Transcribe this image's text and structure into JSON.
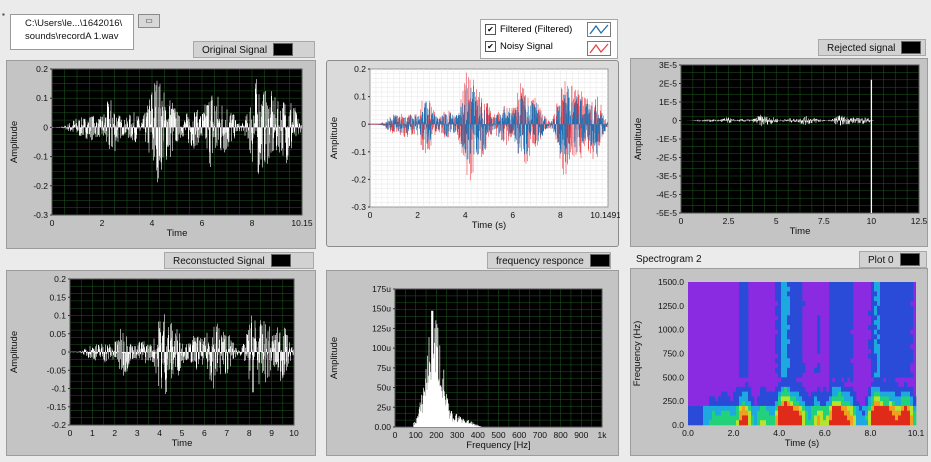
{
  "file_path": {
    "line1": "C:\\Users\\le...\\1642016\\",
    "line2": "sounds\\recordA 1.wav"
  },
  "browse_button": {
    "label": "▭"
  },
  "legend": {
    "items": [
      {
        "label": "Filtered (Filtered)",
        "checked": "✔",
        "color": "#1f6fb2"
      },
      {
        "label": "Noisy Signal",
        "checked": "✔",
        "color": "#e8434c"
      }
    ]
  },
  "original": {
    "title": "Original Signal",
    "xlabel": "Time",
    "ylabel": "Amplitude",
    "yticks": [
      "0.2",
      "0.1",
      "0",
      "-0.1",
      "-0.2",
      "-0.3"
    ],
    "xticks": [
      "0",
      "2",
      "4",
      "6",
      "8",
      "10.15"
    ]
  },
  "filtered": {
    "xlabel": "Time (s)",
    "ylabel": "Amplitude",
    "yticks": [
      "0.2",
      "0.1",
      "0",
      "-0.1",
      "-0.2",
      "-0.3"
    ],
    "xticks": [
      "0",
      "2",
      "4",
      "6",
      "8",
      "10.14912"
    ]
  },
  "rejected": {
    "title": "Rejected signal",
    "xlabel": "Time",
    "ylabel": "Amplitude",
    "yticks": [
      "3E-5",
      "2E-5",
      "1E-5",
      "0",
      "-1E-5",
      "-2E-5",
      "-3E-5",
      "-4E-5",
      "-5E-5"
    ],
    "xticks": [
      "0",
      "2.5",
      "5",
      "7.5",
      "10",
      "12.5"
    ]
  },
  "reconstructed": {
    "title": "Reconstucted Signal",
    "xlabel": "Time",
    "ylabel": "Amplitude",
    "yticks": [
      "0.2",
      "0.15",
      "0.1",
      "0.05",
      "0",
      "-0.05",
      "-0.1",
      "-0.15",
      "-0.2"
    ],
    "xticks": [
      "0",
      "1",
      "2",
      "3",
      "4",
      "5",
      "6",
      "7",
      "8",
      "9",
      "10"
    ]
  },
  "frequency": {
    "title": "frequency responce",
    "xlabel": "Frequency [Hz]",
    "ylabel": "Amplitude",
    "yticks": [
      "175u",
      "150u",
      "125u",
      "100u",
      "75u",
      "50u",
      "25u",
      "0.00"
    ],
    "xticks": [
      "0",
      "100",
      "200",
      "300",
      "400",
      "500",
      "600",
      "700",
      "800",
      "900",
      "1k"
    ]
  },
  "spectrogram": {
    "title": "Spectrogram 2",
    "plot_label": "Plot 0",
    "xlabel": "Time (s)",
    "ylabel": "Frequency (Hz)",
    "yticks": [
      "1500.0",
      "1250.0",
      "1000.0",
      "750.0",
      "500.0",
      "250.0",
      "0.0"
    ],
    "xticks": [
      "0.0",
      "2.0",
      "4.0",
      "6.0",
      "8.0",
      "10.1"
    ]
  },
  "colors": {
    "plot_bg": "#000000",
    "grid": "#1f5a1f",
    "signal": "#ffffff",
    "filtered": "#1f6fb2",
    "noisy": "#e8434c",
    "spectro_bg": "#8a2be2"
  }
}
